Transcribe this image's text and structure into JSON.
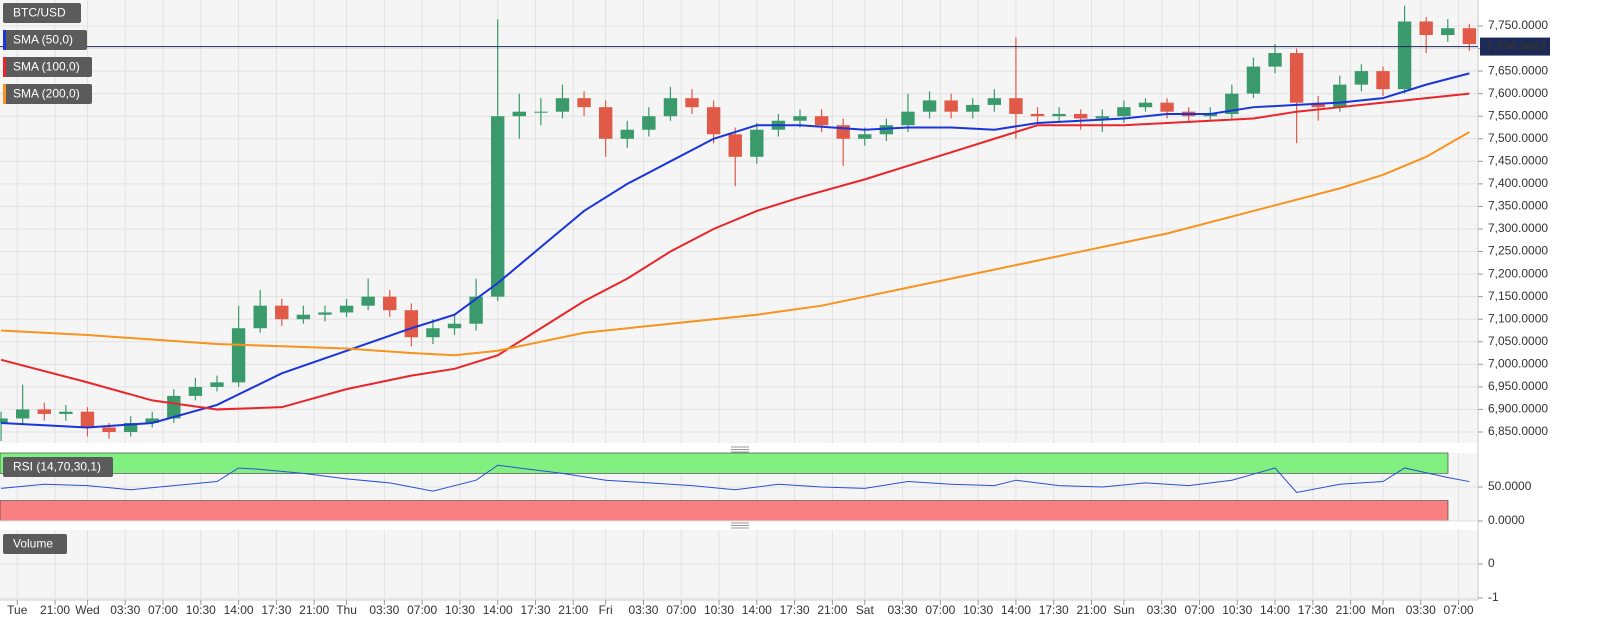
{
  "chart_data": [
    {
      "type": "candlestick",
      "title": "BTC/USD",
      "x": [
        16,
        18,
        20,
        22,
        24,
        26,
        28,
        30,
        32,
        34,
        36,
        38,
        40,
        42,
        44,
        46,
        48,
        50,
        52,
        54,
        56,
        58,
        60,
        62,
        64,
        66,
        68,
        70,
        72,
        74,
        76,
        78,
        80,
        82,
        84,
        86,
        88,
        90,
        92,
        94,
        96,
        98,
        100,
        102,
        104,
        106,
        108,
        110,
        112,
        114,
        116,
        118,
        120,
        122,
        124,
        126,
        128,
        130,
        132,
        134,
        136,
        138,
        140,
        142,
        144,
        146,
        148,
        150,
        152
      ],
      "open": [
        6870,
        6880,
        6900,
        6890,
        6895,
        6860,
        6850,
        6870,
        6880,
        6930,
        6950,
        6960,
        7080,
        7130,
        7100,
        7110,
        7115,
        7130,
        7150,
        7120,
        7060,
        7080,
        7090,
        7150,
        7550,
        7560,
        7560,
        7590,
        7570,
        7500,
        7520,
        7550,
        7590,
        7570,
        7510,
        7460,
        7520,
        7540,
        7550,
        7530,
        7500,
        7510,
        7530,
        7560,
        7585,
        7560,
        7575,
        7590,
        7555,
        7550,
        7555,
        7545,
        7550,
        7570,
        7580,
        7560,
        7550,
        7555,
        7600,
        7660,
        7690,
        7580,
        7570,
        7620,
        7650,
        7610,
        7760,
        7730,
        7745
      ],
      "high": [
        6895,
        6955,
        6915,
        6910,
        6905,
        6870,
        6885,
        6895,
        6945,
        6970,
        6975,
        7130,
        7165,
        7145,
        7130,
        7130,
        7145,
        7190,
        7165,
        7135,
        7100,
        7110,
        7190,
        7765,
        7600,
        7590,
        7620,
        7605,
        7585,
        7540,
        7570,
        7615,
        7610,
        7585,
        7525,
        7535,
        7555,
        7565,
        7565,
        7545,
        7525,
        7545,
        7600,
        7605,
        7600,
        7590,
        7610,
        7725,
        7570,
        7570,
        7565,
        7565,
        7585,
        7590,
        7590,
        7570,
        7570,
        7620,
        7680,
        7710,
        7700,
        7595,
        7640,
        7665,
        7660,
        7795,
        7770,
        7765,
        7755
      ],
      "low": [
        6830,
        6865,
        6875,
        6875,
        6840,
        6835,
        6840,
        6860,
        6870,
        6920,
        6940,
        6950,
        7070,
        7085,
        7090,
        7095,
        7105,
        7120,
        7105,
        7040,
        7045,
        7065,
        7075,
        7140,
        7500,
        7530,
        7545,
        7550,
        7460,
        7480,
        7505,
        7540,
        7555,
        7490,
        7395,
        7445,
        7505,
        7525,
        7515,
        7440,
        7485,
        7495,
        7515,
        7545,
        7545,
        7545,
        7560,
        7500,
        7535,
        7535,
        7520,
        7515,
        7535,
        7560,
        7545,
        7535,
        7540,
        7545,
        7590,
        7645,
        7490,
        7540,
        7560,
        7605,
        7595,
        7600,
        7690,
        7715,
        7695
      ],
      "close": [
        6880,
        6900,
        6890,
        6895,
        6860,
        6850,
        6870,
        6880,
        6930,
        6950,
        6960,
        7080,
        7130,
        7100,
        7110,
        7115,
        7130,
        7150,
        7120,
        7060,
        7080,
        7090,
        7150,
        7550,
        7560,
        7560,
        7590,
        7570,
        7500,
        7520,
        7550,
        7590,
        7570,
        7510,
        7460,
        7520,
        7540,
        7550,
        7530,
        7500,
        7510,
        7530,
        7560,
        7585,
        7560,
        7575,
        7590,
        7555,
        7550,
        7555,
        7545,
        7550,
        7570,
        7580,
        7560,
        7550,
        7555,
        7600,
        7660,
        7690,
        7580,
        7570,
        7620,
        7650,
        7610,
        7760,
        7730,
        7745,
        7710
      ],
      "up_color": "#3a9a6c",
      "down_color": "#e05a47",
      "series": [
        {
          "name": "SMA (50,0)",
          "color": "#1a35d8",
          "x": [
            16,
            24,
            30,
            36,
            42,
            48,
            54,
            58,
            62,
            66,
            70,
            74,
            78,
            82,
            86,
            90,
            96,
            100,
            104,
            108,
            112,
            116,
            120,
            124,
            128,
            132,
            136,
            140,
            144,
            148,
            152
          ],
          "values": [
            6870,
            6860,
            6870,
            6910,
            6980,
            7030,
            7080,
            7110,
            7180,
            7260,
            7340,
            7400,
            7450,
            7500,
            7530,
            7530,
            7520,
            7525,
            7525,
            7520,
            7535,
            7540,
            7545,
            7555,
            7555,
            7570,
            7575,
            7580,
            7590,
            7620,
            7645
          ]
        },
        {
          "name": "SMA (100,0)",
          "color": "#e8262a",
          "x": [
            16,
            24,
            30,
            36,
            42,
            48,
            54,
            58,
            62,
            66,
            70,
            74,
            78,
            82,
            86,
            90,
            96,
            100,
            104,
            108,
            112,
            116,
            120,
            124,
            128,
            132,
            136,
            140,
            144,
            148,
            152
          ],
          "values": [
            7010,
            6960,
            6920,
            6900,
            6905,
            6945,
            6975,
            6990,
            7020,
            7080,
            7140,
            7190,
            7250,
            7300,
            7340,
            7370,
            7410,
            7440,
            7470,
            7500,
            7530,
            7530,
            7530,
            7535,
            7540,
            7545,
            7560,
            7570,
            7580,
            7590,
            7600
          ]
        },
        {
          "name": "SMA (200,0)",
          "color": "#f7931e",
          "x": [
            16,
            24,
            36,
            42,
            48,
            54,
            58,
            62,
            70,
            78,
            86,
            92,
            100,
            108,
            116,
            124,
            132,
            140,
            144,
            148,
            152
          ],
          "values": [
            7075,
            7065,
            7045,
            7040,
            7035,
            7025,
            7020,
            7030,
            7070,
            7090,
            7110,
            7130,
            7170,
            7210,
            7250,
            7290,
            7340,
            7390,
            7420,
            7460,
            7515
          ]
        }
      ],
      "last_price": {
        "value": 7704.3683,
        "label": "7,704.3683"
      },
      "xlim": [
        15.9,
        152.8
      ],
      "ylim": [
        6825.6,
        7807.6
      ],
      "yticks": [
        {
          "value": 6850,
          "label": "6,850.0000"
        },
        {
          "value": 6900,
          "label": "6,900.0000"
        },
        {
          "value": 6950,
          "label": "6,950.0000"
        },
        {
          "value": 7000,
          "label": "7,000.0000"
        },
        {
          "value": 7050,
          "label": "7,050.0000"
        },
        {
          "value": 7100,
          "label": "7,100.0000"
        },
        {
          "value": 7150,
          "label": "7,150.0000"
        },
        {
          "value": 7200,
          "label": "7,200.0000"
        },
        {
          "value": 7250,
          "label": "7,250.0000"
        },
        {
          "value": 7300,
          "label": "7,300.0000"
        },
        {
          "value": 7350,
          "label": "7,350.0000"
        },
        {
          "value": 7400,
          "label": "7,400.0000"
        },
        {
          "value": 7450,
          "label": "7,450.0000"
        },
        {
          "value": 7500,
          "label": "7,500.0000"
        },
        {
          "value": 7550,
          "label": "7,550.0000"
        },
        {
          "value": 7600,
          "label": "7,600.0000"
        },
        {
          "value": 7650,
          "label": "7,650.0000"
        },
        {
          "value": 7700,
          "label": "7,700.0000"
        },
        {
          "value": 7750,
          "label": "7,750.0000"
        }
      ],
      "grid": true
    },
    {
      "type": "line",
      "title": "RSI (14,70,30,1)",
      "series": [
        {
          "color": "#2a4fd6",
          "x": [
            16,
            20,
            24,
            28,
            32,
            36,
            38,
            40,
            44,
            48,
            52,
            56,
            60,
            62,
            64,
            68,
            72,
            76,
            80,
            84,
            88,
            92,
            96,
            100,
            104,
            108,
            110,
            114,
            118,
            122,
            126,
            130,
            134,
            136,
            140,
            144,
            146,
            150,
            152
          ],
          "values": [
            48,
            54,
            52,
            46,
            52,
            58,
            78,
            76,
            70,
            62,
            56,
            44,
            60,
            82,
            78,
            70,
            60,
            56,
            52,
            46,
            54,
            50,
            48,
            58,
            54,
            52,
            60,
            52,
            50,
            56,
            52,
            60,
            78,
            42,
            54,
            58,
            78,
            64,
            58
          ]
        }
      ],
      "bands": [
        {
          "range": [
            70,
            100
          ],
          "color": "#80f080"
        },
        {
          "range": [
            0,
            30
          ],
          "color": "#f88080"
        }
      ],
      "xlim": [
        15.9,
        152.8
      ],
      "ylim": [
        0,
        100
      ],
      "yticks": [
        {
          "value": 50,
          "label": "50.0000"
        },
        {
          "value": 0,
          "label": "0.0000"
        }
      ],
      "grid": true
    },
    {
      "type": "bar",
      "title": "Volume",
      "xlim": [
        15.9,
        152.8
      ],
      "ylim": [
        -1.06,
        1
      ],
      "yticks": [
        0,
        -1
      ],
      "grid": true,
      "xticks": [
        {
          "value": 17.5,
          "label": "Tue"
        },
        {
          "value": 21,
          "label": "21:00"
        },
        {
          "value": 24,
          "label": "Wed"
        },
        {
          "value": 27.5,
          "label": "03:30"
        },
        {
          "value": 31,
          "label": "07:00"
        },
        {
          "value": 34.5,
          "label": "10:30"
        },
        {
          "value": 38,
          "label": "14:00"
        },
        {
          "value": 41.5,
          "label": "17:30"
        },
        {
          "value": 45,
          "label": "21:00"
        },
        {
          "value": 48,
          "label": "Thu"
        },
        {
          "value": 51.5,
          "label": "03:30"
        },
        {
          "value": 55,
          "label": "07:00"
        },
        {
          "value": 58.5,
          "label": "10:30"
        },
        {
          "value": 62,
          "label": "14:00"
        },
        {
          "value": 65.5,
          "label": "17:30"
        },
        {
          "value": 69,
          "label": "21:00"
        },
        {
          "value": 72,
          "label": "Fri"
        },
        {
          "value": 75.5,
          "label": "03:30"
        },
        {
          "value": 79,
          "label": "07:00"
        },
        {
          "value": 82.5,
          "label": "10:30"
        },
        {
          "value": 86,
          "label": "14:00"
        },
        {
          "value": 89.5,
          "label": "17:30"
        },
        {
          "value": 93,
          "label": "21:00"
        },
        {
          "value": 96,
          "label": "Sat"
        },
        {
          "value": 99.5,
          "label": "03:30"
        },
        {
          "value": 103,
          "label": "07:00"
        },
        {
          "value": 106.5,
          "label": "10:30"
        },
        {
          "value": 110,
          "label": "14:00"
        },
        {
          "value": 113.5,
          "label": "17:30"
        },
        {
          "value": 117,
          "label": "21:00"
        },
        {
          "value": 120,
          "label": "Sun"
        },
        {
          "value": 123.5,
          "label": "03:30"
        },
        {
          "value": 127,
          "label": "07:00"
        },
        {
          "value": 130.5,
          "label": "10:30"
        },
        {
          "value": 134,
          "label": "14:00"
        },
        {
          "value": 137.5,
          "label": "17:30"
        },
        {
          "value": 141,
          "label": "21:00"
        },
        {
          "value": 144,
          "label": "Mon"
        },
        {
          "value": 147.5,
          "label": "03:30"
        },
        {
          "value": 151,
          "label": "07:00"
        }
      ]
    }
  ]
}
